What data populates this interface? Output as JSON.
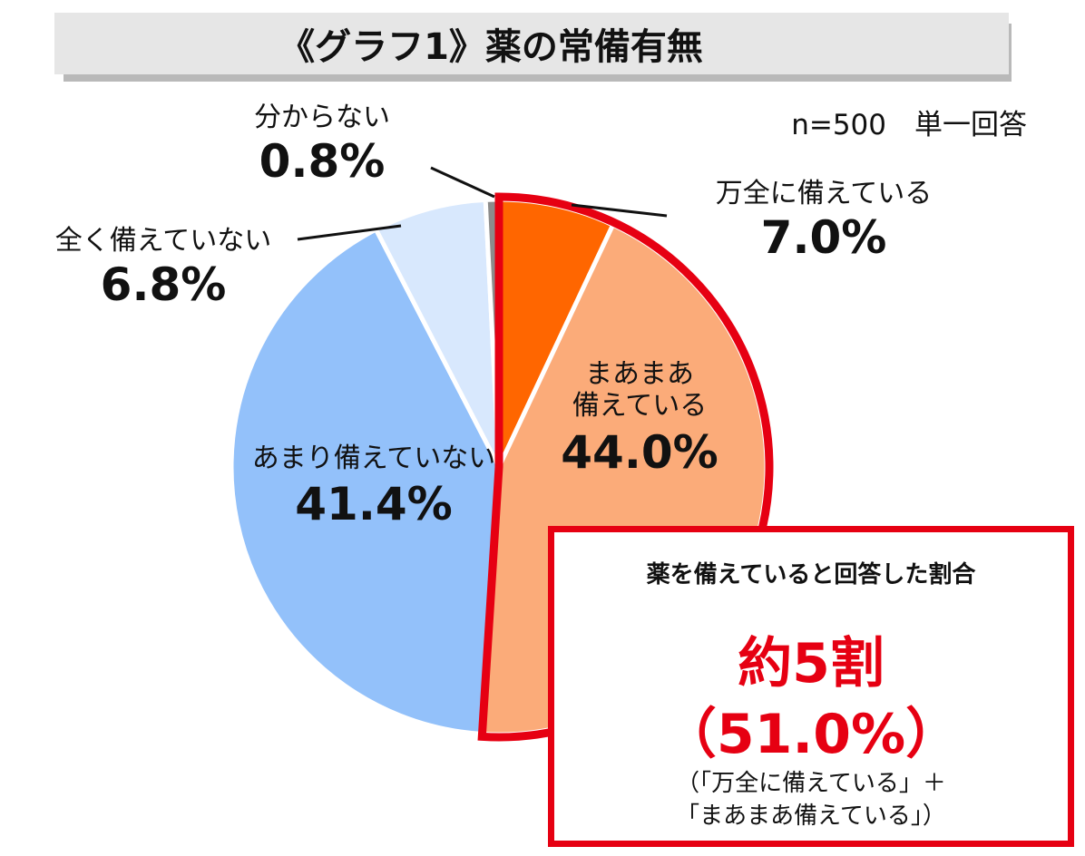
{
  "chart_data": {
    "type": "pie",
    "title": "《グラフ1》薬の常備有無",
    "note": "n=500　単一回答",
    "slices": [
      {
        "label": "万全に備えている",
        "value": 7.0,
        "display": "7.0%",
        "color": "#ff6600"
      },
      {
        "label": "まあまあ備えている",
        "value": 44.0,
        "display": "44.0%",
        "color": "#fbab79"
      },
      {
        "label": "あまり備えていない",
        "value": 41.4,
        "display": "41.4%",
        "color": "#93c1fa"
      },
      {
        "label": "全く備えていない",
        "value": 6.8,
        "display": "6.8%",
        "color": "#d8e8fd"
      },
      {
        "label": "分からない",
        "value": 0.8,
        "display": "0.8%",
        "color": "#8c8c8c"
      }
    ],
    "highlight_outline_color": "#e60012"
  },
  "labels": {
    "mataku_name": "まあまあ",
    "mataku_name2": "備えている"
  },
  "callout": {
    "heading": "薬を備えていると回答した割合",
    "big1": "約5割",
    "big2": "（51.0%）",
    "note1": "（「万全に備えている」＋",
    "note2": "「まあまあ備えている」）"
  }
}
